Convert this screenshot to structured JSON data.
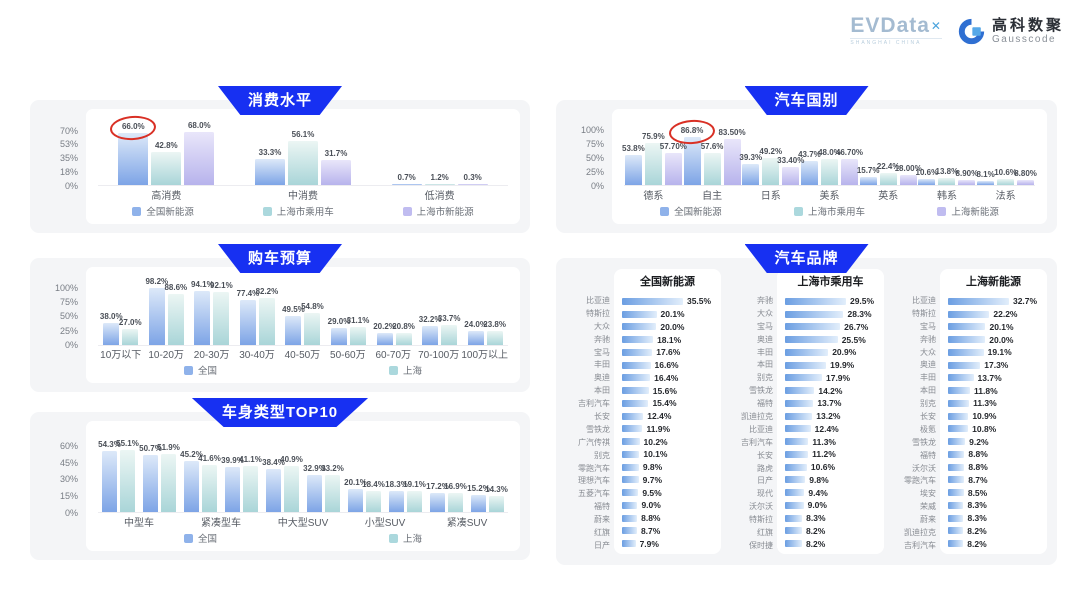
{
  "header": {
    "evdata_logo": "EVData",
    "evdata_x": "✕",
    "evdata_sub": "SHANGHAI CHINA",
    "gausscode_cn": "高科数聚",
    "gausscode_en": "Gausscode"
  },
  "colors": {
    "banner_blue": "#1730f2",
    "blue_top": "#dde9f9",
    "blue_bottom": "#7da4e6",
    "cyan_top": "#ecf6f4",
    "cyan_bottom": "#a9d5d8",
    "purple_top": "#e9e6fa",
    "purple_bottom": "#b7b3ec",
    "legend_blue": "#8fb2ea",
    "legend_cyan": "#abd8dd",
    "legend_purple": "#c0bcf0",
    "hbar_left": "#6b9ee2",
    "hbar_right": "#e2eefb",
    "circle_red": "#d93025"
  },
  "chart_data": [
    {
      "id": "c1",
      "type": "bar",
      "title": "消费水平",
      "categories": [
        "高消费",
        "中消费",
        "低消费"
      ],
      "series": [
        {
          "name": "全国新能源",
          "color": "blue",
          "values": [
            66.0,
            33.3,
            0.7
          ],
          "labels": [
            "66.0%",
            "33.3%",
            "0.7%"
          ]
        },
        {
          "name": "上海市乘用车",
          "color": "cyan",
          "values": [
            42.8,
            56.1,
            1.2
          ],
          "labels": [
            "42.8%",
            "56.1%",
            "1.2%"
          ]
        },
        {
          "name": "上海市新能源",
          "color": "purple",
          "values": [
            68.0,
            31.7,
            0.3
          ],
          "labels": [
            "68.0%",
            "31.7%",
            "0.3%"
          ]
        }
      ],
      "yticks": [
        "0%",
        "18%",
        "35%",
        "53%",
        "70%"
      ],
      "ytick_values": [
        0,
        18,
        35,
        53,
        70
      ],
      "ylim": [
        0,
        76
      ],
      "legend_position": "bottom",
      "grid": false,
      "annotation": {
        "type": "red-circle",
        "series": 0,
        "category": 0,
        "value": "66.0%"
      }
    },
    {
      "id": "c2",
      "type": "bar",
      "title": "购车预算",
      "categories": [
        "10万以下",
        "10-20万",
        "20-30万",
        "30-40万",
        "40-50万",
        "50-60万",
        "60-70万",
        "70-100万",
        "100万以上"
      ],
      "series": [
        {
          "name": "全国",
          "color": "blue",
          "values": [
            38.0,
            98.2,
            94.1,
            77.4,
            49.5,
            29.0,
            20.2,
            32.2,
            24.0
          ],
          "labels": [
            "38.0%",
            "98.2%",
            "94.1%",
            "77.4%",
            "49.5%",
            "29.0%",
            "20.2%",
            "32.2%",
            "24.0%"
          ]
        },
        {
          "name": "上海",
          "color": "cyan",
          "values": [
            27.0,
            88.6,
            92.1,
            82.2,
            54.8,
            31.1,
            20.8,
            33.7,
            23.8
          ],
          "labels": [
            "27.0%",
            "88.6%",
            "92.1%",
            "82.2%",
            "54.8%",
            "31.1%",
            "20.8%",
            "33.7%",
            "23.8%"
          ]
        }
      ],
      "yticks": [
        "0%",
        "25%",
        "50%",
        "75%",
        "100%"
      ],
      "ytick_values": [
        0,
        25,
        50,
        75,
        100
      ],
      "ylim": [
        0,
        108
      ],
      "legend_position": "bottom",
      "grid": false
    },
    {
      "id": "c3",
      "type": "bar",
      "title": "车身类型TOP10",
      "categories": [
        "中型车",
        "紧凑型车",
        "中大型SUV",
        "小型SUV",
        "紧凑SUV"
      ],
      "category_span": 2,
      "series": [
        {
          "name": "全国",
          "color": "blue",
          "values": [
            54.3,
            50.7,
            45.2,
            39.9,
            38.4,
            32.9,
            20.1,
            18.3,
            17.2,
            15.2
          ],
          "labels": [
            "54.3%",
            "50.7%",
            "45.2%",
            "39.9%",
            "38.4%",
            "32.9%",
            "20.1%",
            "18.3%",
            "17.2%",
            "15.2%"
          ]
        },
        {
          "name": "上海",
          "color": "cyan",
          "values": [
            55.1,
            51.9,
            41.6,
            41.1,
            40.9,
            33.2,
            18.4,
            19.1,
            16.9,
            14.3
          ],
          "labels": [
            "55.1%",
            "51.9%",
            "41.6%",
            "41.1%",
            "40.9%",
            "33.2%",
            "18.4%",
            "19.1%",
            "16.9%",
            "14.3%"
          ]
        }
      ],
      "yticks": [
        "0%",
        "15%",
        "30%",
        "45%",
        "60%"
      ],
      "ytick_values": [
        0,
        15,
        30,
        45,
        60
      ],
      "ylim": [
        0,
        66
      ],
      "legend_position": "bottom",
      "grid": false
    },
    {
      "id": "c4",
      "type": "bar",
      "title": "汽车国别",
      "categories": [
        "德系",
        "自主",
        "日系",
        "美系",
        "英系",
        "韩系",
        "法系"
      ],
      "series": [
        {
          "name": "全国新能源",
          "color": "blue",
          "values": [
            53.8,
            86.8,
            39.3,
            43.7,
            15.7,
            10.6,
            8.1
          ],
          "labels": [
            "53.8%",
            "86.8%",
            "39.3%",
            "43.7%",
            "15.7%",
            "10.6%",
            "8.1%"
          ]
        },
        {
          "name": "上海市乘用车",
          "color": "cyan",
          "values": [
            75.9,
            57.6,
            49.2,
            48.0,
            22.4,
            13.8,
            10.6
          ],
          "labels": [
            "75.9%",
            "57.6%",
            "49.2%",
            "48.0%",
            "22.4%",
            "13.8%",
            "10.6%"
          ]
        },
        {
          "name": "上海新能源",
          "color": "purple",
          "values": [
            57.7,
            83.5,
            33.4,
            46.7,
            18.0,
            8.9,
            8.8
          ],
          "labels": [
            "57.70%",
            "83.50%",
            "33.40%",
            "46.70%",
            "18.00%",
            "8.90%",
            "8.80%"
          ]
        }
      ],
      "yticks": [
        "0%",
        "25%",
        "50%",
        "75%",
        "100%"
      ],
      "ytick_values": [
        0,
        25,
        50,
        75,
        100
      ],
      "ylim": [
        0,
        108
      ],
      "legend_position": "bottom",
      "grid": false,
      "annotation": {
        "type": "red-circle",
        "series": 0,
        "category": 1,
        "value": "86.8%"
      }
    },
    {
      "id": "c5",
      "type": "bar",
      "subtype": "horizontal-lists",
      "title": "汽车品牌",
      "lists": [
        {
          "title": "全国新能源",
          "items": [
            {
              "label": "比亚迪",
              "value": 35.5
            },
            {
              "label": "特斯拉",
              "value": 20.1
            },
            {
              "label": "大众",
              "value": 20.0
            },
            {
              "label": "奔驰",
              "value": 18.1
            },
            {
              "label": "宝马",
              "value": 17.6
            },
            {
              "label": "丰田",
              "value": 16.6
            },
            {
              "label": "奥迪",
              "value": 16.4
            },
            {
              "label": "本田",
              "value": 15.6
            },
            {
              "label": "吉利汽车",
              "value": 15.4
            },
            {
              "label": "长安",
              "value": 12.4
            },
            {
              "label": "雪铁龙",
              "value": 11.9
            },
            {
              "label": "广汽传祺",
              "value": 10.2
            },
            {
              "label": "别克",
              "value": 10.1
            },
            {
              "label": "零跑汽车",
              "value": 9.8
            },
            {
              "label": "理想汽车",
              "value": 9.7
            },
            {
              "label": "五菱汽车",
              "value": 9.5
            },
            {
              "label": "福特",
              "value": 9.0
            },
            {
              "label": "蔚来",
              "value": 8.8
            },
            {
              "label": "红旗",
              "value": 8.7
            },
            {
              "label": "日产",
              "value": 7.9
            }
          ]
        },
        {
          "title": "上海市乘用车",
          "items": [
            {
              "label": "奔驰",
              "value": 29.5
            },
            {
              "label": "大众",
              "value": 28.3
            },
            {
              "label": "宝马",
              "value": 26.7
            },
            {
              "label": "奥迪",
              "value": 25.5
            },
            {
              "label": "丰田",
              "value": 20.9
            },
            {
              "label": "本田",
              "value": 19.9
            },
            {
              "label": "别克",
              "value": 17.9
            },
            {
              "label": "雪铁龙",
              "value": 14.2
            },
            {
              "label": "福特",
              "value": 13.7
            },
            {
              "label": "凯迪拉克",
              "value": 13.2
            },
            {
              "label": "比亚迪",
              "value": 12.4
            },
            {
              "label": "吉利汽车",
              "value": 11.3
            },
            {
              "label": "长安",
              "value": 11.2
            },
            {
              "label": "路虎",
              "value": 10.6
            },
            {
              "label": "日产",
              "value": 9.8
            },
            {
              "label": "现代",
              "value": 9.4
            },
            {
              "label": "沃尔沃",
              "value": 9.0
            },
            {
              "label": "特斯拉",
              "value": 8.3
            },
            {
              "label": "红旗",
              "value": 8.2
            },
            {
              "label": "保时捷",
              "value": 8.2
            }
          ]
        },
        {
          "title": "上海新能源",
          "items": [
            {
              "label": "比亚迪",
              "value": 32.7
            },
            {
              "label": "特斯拉",
              "value": 22.2
            },
            {
              "label": "宝马",
              "value": 20.1
            },
            {
              "label": "奔驰",
              "value": 20.0
            },
            {
              "label": "大众",
              "value": 19.1
            },
            {
              "label": "奥迪",
              "value": 17.3
            },
            {
              "label": "丰田",
              "value": 13.7
            },
            {
              "label": "本田",
              "value": 11.8
            },
            {
              "label": "别克",
              "value": 11.3
            },
            {
              "label": "长安",
              "value": 10.9
            },
            {
              "label": "极氪",
              "value": 10.8
            },
            {
              "label": "雪铁龙",
              "value": 9.2
            },
            {
              "label": "福特",
              "value": 8.8
            },
            {
              "label": "沃尔沃",
              "value": 8.8
            },
            {
              "label": "零跑汽车",
              "value": 8.7
            },
            {
              "label": "埃安",
              "value": 8.5
            },
            {
              "label": "荣威",
              "value": 8.3
            },
            {
              "label": "蔚来",
              "value": 8.3
            },
            {
              "label": "凯迪拉克",
              "value": 8.2
            },
            {
              "label": "吉利汽车",
              "value": 8.2
            }
          ]
        }
      ]
    }
  ]
}
